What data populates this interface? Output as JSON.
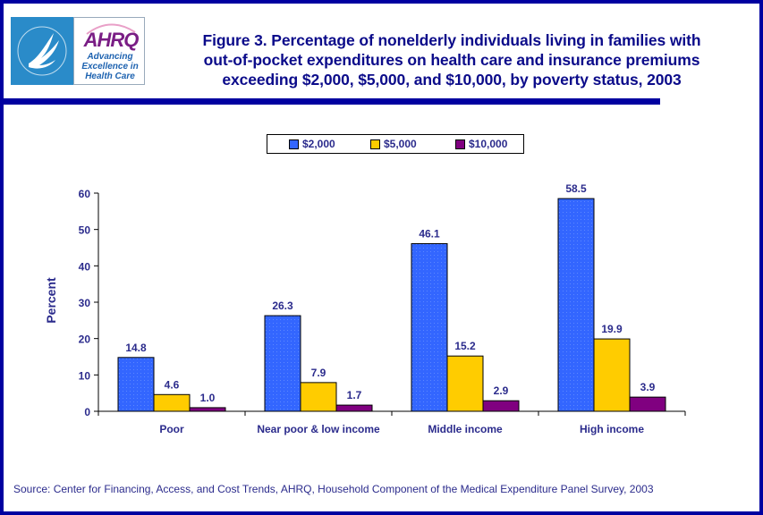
{
  "logo": {
    "agency": "AHRQ",
    "tagline": [
      "Advancing",
      "Excellence in",
      "Health Care"
    ],
    "seal_icon": "hhs-eagle-seal-icon"
  },
  "header": {
    "title_lines": [
      "Figure 3. Percentage of nonelderly individuals living in families with",
      "out-of-pocket expenditures on health care and insurance premiums",
      "exceeding $2,000, $5,000, and $10,000, by poverty status, 2003"
    ]
  },
  "colors": {
    "frame": "#0000a0",
    "text": "#2b2b8c",
    "series": [
      "#3366ff",
      "#ffcc00",
      "#800080"
    ]
  },
  "chart_data": {
    "type": "bar",
    "title": "Figure 3. Percentage of nonelderly individuals living in families with out-of-pocket expenditures on health care and insurance premiums exceeding $2,000, $5,000, and $10,000, by poverty status, 2003",
    "xlabel": "",
    "ylabel": "Percent",
    "ylim": [
      0,
      60
    ],
    "yticks": [
      0,
      10,
      20,
      30,
      40,
      50,
      60
    ],
    "grid": false,
    "legend_position": "top-center",
    "categories": [
      "Poor",
      "Near poor & low income",
      "Middle income",
      "High income"
    ],
    "series": [
      {
        "name": "$2,000",
        "values": [
          14.8,
          26.3,
          46.1,
          58.5
        ],
        "labels": [
          "14.8",
          "26.3",
          "46.1",
          "58.5"
        ]
      },
      {
        "name": "$5,000",
        "values": [
          4.6,
          7.9,
          15.2,
          19.9
        ],
        "labels": [
          "4.6",
          "7.9",
          "15.2",
          "19.9"
        ]
      },
      {
        "name": "$10,000",
        "values": [
          1.0,
          1.7,
          2.9,
          3.9
        ],
        "labels": [
          "1.0",
          "1.7",
          "2.9",
          "3.9"
        ]
      }
    ]
  },
  "legend": {
    "items": [
      "$2,000",
      "$5,000",
      "$10,000"
    ]
  },
  "footer": {
    "source": "Source: Center for Financing, Access, and Cost Trends, AHRQ, Household Component of the Medical Expenditure Panel Survey, 2003"
  }
}
